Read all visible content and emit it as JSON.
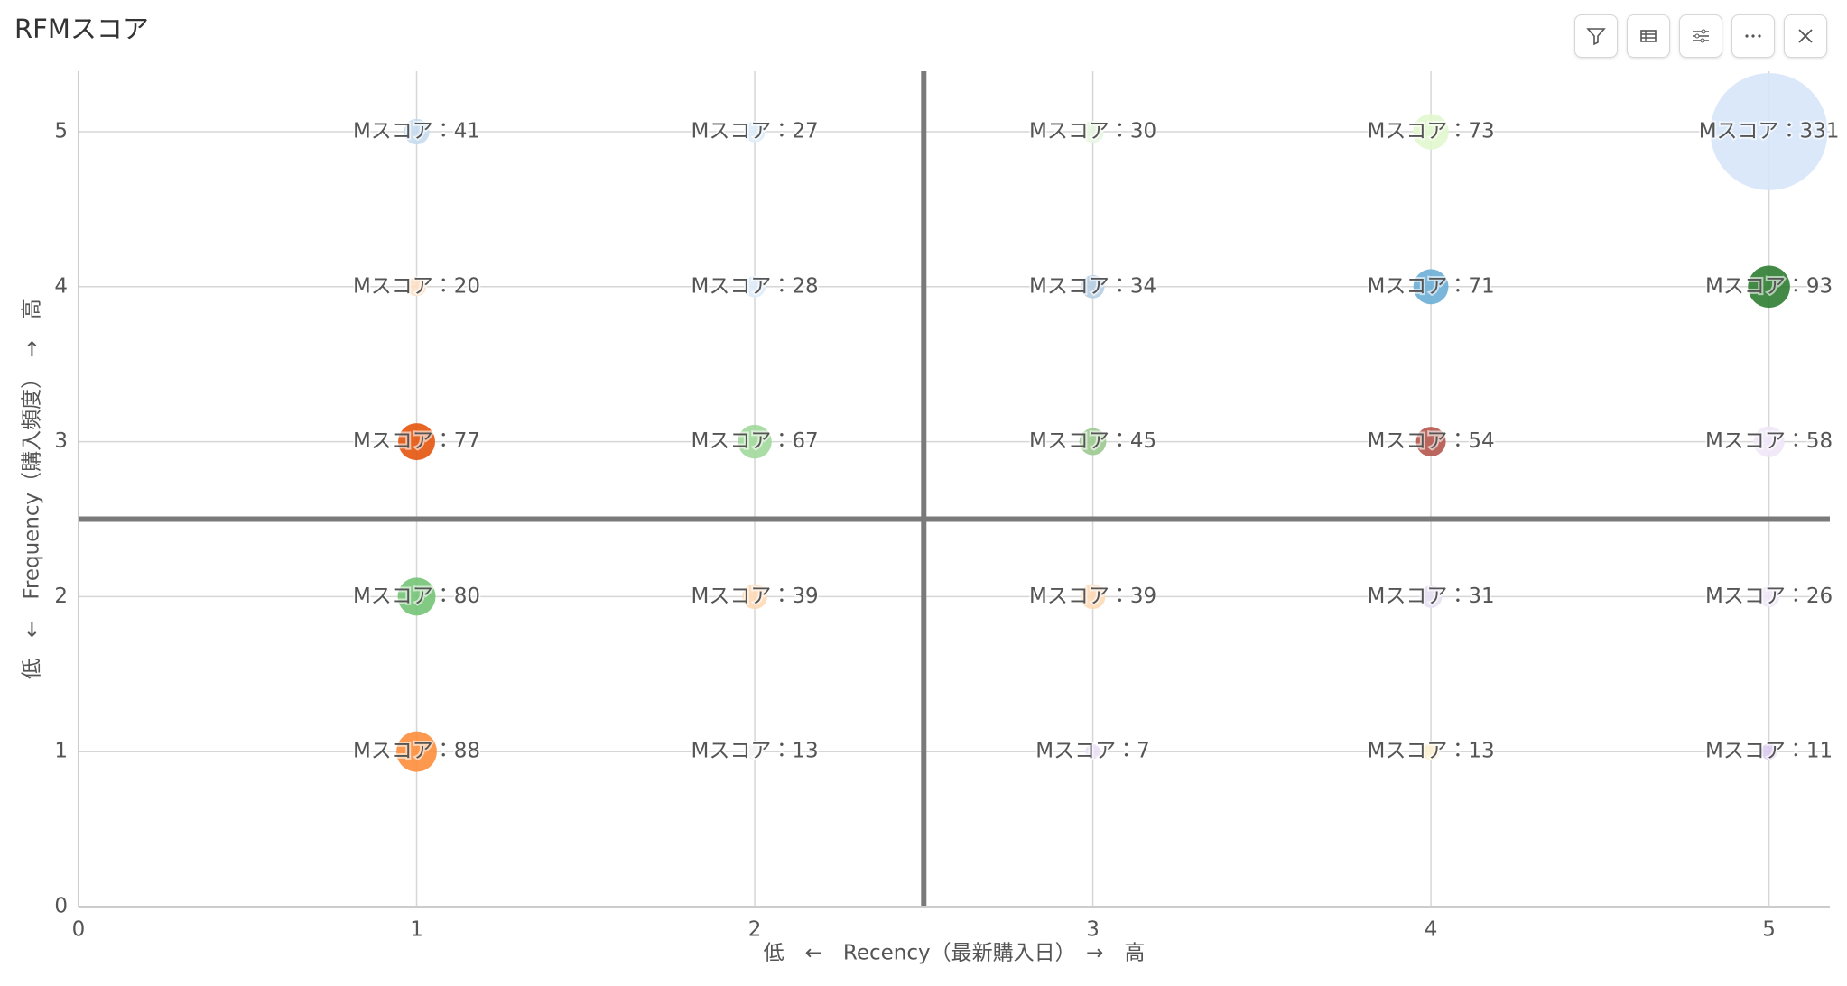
{
  "chart_data": {
    "type": "bubble",
    "title": "RFMスコア",
    "x_label": "低　←　Recency（最新購入日）　→　高",
    "y_label": "低　←　Frequency（購入頻度）　→　高",
    "xlim": [
      0,
      5.18
    ],
    "ylim": [
      0,
      5.39
    ],
    "xticks": [
      0,
      1,
      2,
      3,
      4,
      5
    ],
    "yticks": [
      0,
      1,
      2,
      3,
      4,
      5
    ],
    "grid": true,
    "reference_lines": {
      "x": 2.5,
      "y": 2.5
    },
    "series": [
      {
        "x": [
          1,
          2,
          3,
          4,
          5,
          1,
          2,
          3,
          4,
          5,
          1,
          2,
          3,
          4,
          5,
          1,
          2,
          3,
          4,
          5,
          1,
          2,
          3,
          4,
          5
        ],
        "values": [
          5,
          5,
          5,
          5,
          5,
          4,
          4,
          4,
          4,
          4,
          3,
          3,
          3,
          3,
          3,
          2,
          2,
          2,
          2,
          2,
          1,
          1,
          1,
          1,
          1
        ],
        "sizes": [
          41,
          27,
          30,
          73,
          331,
          20,
          28,
          34,
          71,
          93,
          77,
          67,
          45,
          54,
          58,
          80,
          39,
          39,
          31,
          26,
          88,
          13,
          7,
          13,
          11
        ],
        "value_labels": [
          "Mスコア：41",
          "Mスコア：27",
          "Mスコア：30",
          "Mスコア：73",
          "Mスコア：331",
          "Mスコア：20",
          "Mスコア：28",
          "Mスコア：34",
          "Mスコア：71",
          "Mスコア：93",
          "Mスコア：77",
          "Mスコア：67",
          "Mスコア：45",
          "Mスコア：54",
          "Mスコア：58",
          "Mスコア：80",
          "Mスコア：39",
          "Mスコア：39",
          "Mスコア：31",
          "Mスコア：26",
          "Mスコア：88",
          "Mスコア：13",
          "Mスコア：7",
          "Mスコア：13",
          "Mスコア：11"
        ],
        "colors": [
          "#c6dbef",
          "#deebf7",
          "#e5f5e0",
          "#e2f7cf",
          "#d6e6f8",
          "#fde0c5",
          "#deebf7",
          "#b7cde3",
          "#6baed6",
          "#2e7d32",
          "#e6550d",
          "#a1d99b",
          "#9cc98f",
          "#b4574c",
          "#efe7f7",
          "#74c476",
          "#fdd9b5",
          "#fdd9b5",
          "#e6e0f2",
          "#efe7f7",
          "#fd8d3c",
          "#f4f4f4",
          "#eadff5",
          "#fdf0d0",
          "#d9cbee"
        ]
      }
    ]
  }
}
